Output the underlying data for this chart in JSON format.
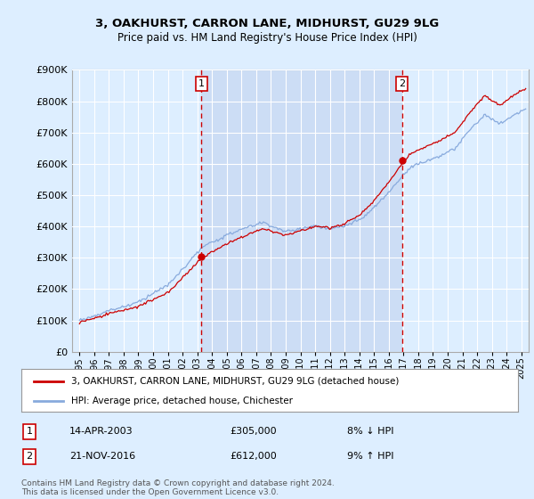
{
  "title": "3, OAKHURST, CARRON LANE, MIDHURST, GU29 9LG",
  "subtitle": "Price paid vs. HM Land Registry's House Price Index (HPI)",
  "legend_line1": "3, OAKHURST, CARRON LANE, MIDHURST, GU29 9LG (detached house)",
  "legend_line2": "HPI: Average price, detached house, Chichester",
  "sale1_date": "14-APR-2003",
  "sale1_price": 305000,
  "sale1_label": "8% ↓ HPI",
  "sale1_year": 2003.29,
  "sale2_date": "21-NOV-2016",
  "sale2_price": 612000,
  "sale2_label": "9% ↑ HPI",
  "sale2_year": 2016.89,
  "ylim": [
    0,
    900000
  ],
  "yticks": [
    0,
    100000,
    200000,
    300000,
    400000,
    500000,
    600000,
    700000,
    800000,
    900000
  ],
  "xlim_start": 1994.5,
  "xlim_end": 2025.5,
  "xtick_years": [
    1995,
    1996,
    1997,
    1998,
    1999,
    2000,
    2001,
    2002,
    2003,
    2004,
    2005,
    2006,
    2007,
    2008,
    2009,
    2010,
    2011,
    2012,
    2013,
    2014,
    2015,
    2016,
    2017,
    2018,
    2019,
    2020,
    2021,
    2022,
    2023,
    2024,
    2025
  ],
  "background_color": "#ddeeff",
  "plot_bg_color": "#ddeeff",
  "grid_color": "#ffffff",
  "red_line_color": "#cc0000",
  "blue_line_color": "#88aadd",
  "highlight_color": "#ccddf5",
  "sale_marker_color": "#cc0000",
  "vline_color": "#cc0000",
  "footer_text": "Contains HM Land Registry data © Crown copyright and database right 2024.\nThis data is licensed under the Open Government Licence v3.0.",
  "note1_num": "1",
  "note2_num": "2"
}
